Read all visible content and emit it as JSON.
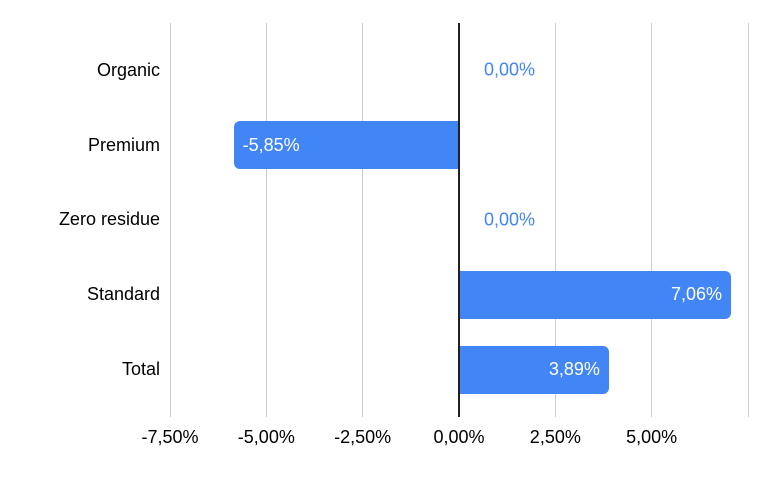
{
  "chart_data": {
    "type": "bar",
    "orientation": "horizontal",
    "title": "",
    "xlabel": "",
    "ylabel": "",
    "grid": true,
    "legend": false,
    "categories": [
      "Organic",
      "Premium",
      "Zero residue",
      "Standard",
      "Total"
    ],
    "values": [
      0,
      -5.85,
      0,
      7.06,
      3.89
    ],
    "value_labels": [
      "0,00%",
      "-5,85%",
      "0,00%",
      "7,06%",
      "3,89%"
    ],
    "xlim": [
      -7.5,
      7.5
    ],
    "x_ticks": [
      {
        "value": -7.5,
        "label": "-7,50%"
      },
      {
        "value": -5.0,
        "label": "-5,00%"
      },
      {
        "value": -2.5,
        "label": "-2,50%"
      },
      {
        "value": 0.0,
        "label": "0,00%"
      },
      {
        "value": 2.5,
        "label": "2,50%"
      },
      {
        "value": 5.0,
        "label": "5,00%"
      },
      {
        "value": 7.5,
        "label": ""
      }
    ],
    "colors": {
      "bar": "#4285f4",
      "bar_label_text": "#ffffff",
      "zero_label_text": "#4285f4",
      "gridline": "#cccccc",
      "axis_line": "#212121",
      "tick_label_text": "#000000",
      "category_label_text": "#000000",
      "background": "#ffffff"
    }
  }
}
